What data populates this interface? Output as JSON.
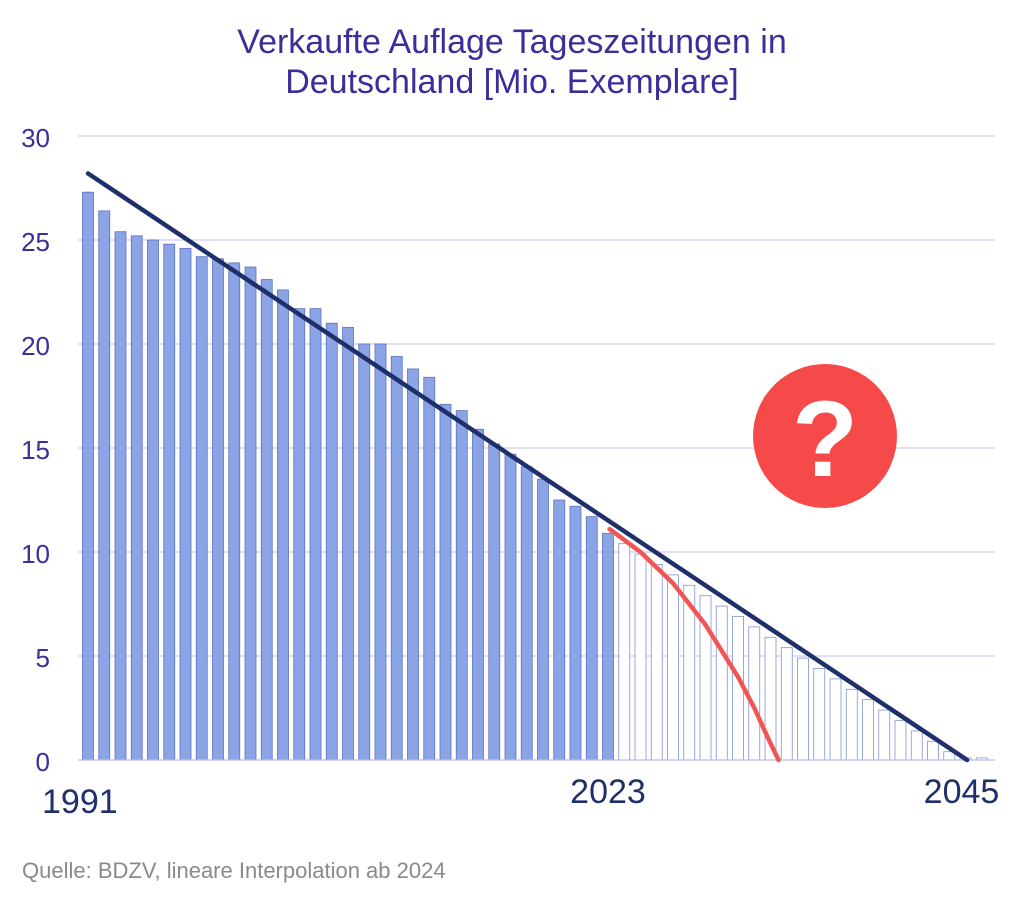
{
  "chart_data": {
    "type": "bar",
    "title_lines": [
      "Verkaufte Auflage Tageszeitungen in",
      "Deutschland [Mio. Exemplare]"
    ],
    "source": "Quelle: BDZV, lineare Interpolation ab 2024",
    "x_labels": [
      {
        "year": 1991,
        "text": "1991"
      },
      {
        "year": 2023,
        "text": "2023"
      },
      {
        "year": 2045,
        "text": "2045"
      }
    ],
    "y_ticks": [
      0,
      5,
      10,
      15,
      20,
      25,
      30
    ],
    "ylim": [
      0,
      30
    ],
    "xrange": [
      1991,
      2046
    ],
    "grid": true,
    "series": [
      {
        "kind": "actual",
        "color": "#8aa4e6",
        "x": [
          1991,
          1992,
          1993,
          1994,
          1995,
          1996,
          1997,
          1998,
          1999,
          2000,
          2001,
          2002,
          2003,
          2004,
          2005,
          2006,
          2007,
          2008,
          2009,
          2010,
          2011,
          2012,
          2013,
          2014,
          2015,
          2016,
          2017,
          2018,
          2019,
          2020,
          2021,
          2022,
          2023
        ],
        "values": [
          27.3,
          26.4,
          25.4,
          25.2,
          25.0,
          24.8,
          24.6,
          24.2,
          24.1,
          23.9,
          23.7,
          23.1,
          22.6,
          21.7,
          21.7,
          21.0,
          20.8,
          20.0,
          20.0,
          19.4,
          18.8,
          18.4,
          17.1,
          16.8,
          15.9,
          15.2,
          14.7,
          14.1,
          13.5,
          12.5,
          12.2,
          11.7,
          10.9
        ]
      },
      {
        "kind": "interpolated",
        "color": "#ffffff",
        "x": [
          2024,
          2025,
          2026,
          2027,
          2028,
          2029,
          2030,
          2031,
          2032,
          2033,
          2034,
          2035,
          2036,
          2037,
          2038,
          2039,
          2040,
          2041,
          2042,
          2043,
          2044,
          2045,
          2046
        ],
        "values": [
          10.4,
          9.9,
          9.4,
          8.9,
          8.4,
          7.9,
          7.4,
          6.9,
          6.4,
          5.9,
          5.4,
          4.9,
          4.4,
          3.9,
          3.4,
          2.9,
          2.4,
          1.9,
          1.4,
          0.9,
          0.4,
          0.1,
          0.1
        ]
      }
    ],
    "trend_line": {
      "color": "#1f2f6b",
      "from": [
        1991,
        28.2
      ],
      "to": [
        2045.1,
        0
      ]
    },
    "decline_curve": {
      "color": "#f25555",
      "x": [
        2023.1,
        2025,
        2027,
        2029,
        2031,
        2032,
        2033,
        2033.5
      ],
      "y": [
        11.1,
        10.0,
        8.5,
        6.5,
        4.0,
        2.5,
        0.8,
        0
      ]
    },
    "badge": {
      "symbol": "?",
      "color": "#f64a4a"
    }
  }
}
